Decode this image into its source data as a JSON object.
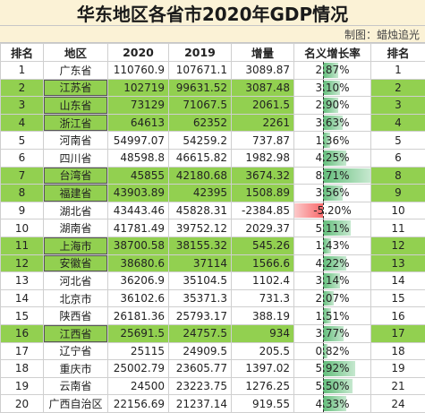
{
  "title": "华东地区各省市2020年GDP情况",
  "credit": "制图：蜡烛追光",
  "headers": [
    "排名",
    "地区",
    "2020",
    "2019",
    "增量",
    "名义增长率",
    "排名"
  ],
  "rows": [
    {
      "rank": "1",
      "region": "广东省",
      "v2020": "110760.9",
      "v2019": "107671.1",
      "inc": "3089.87",
      "rate": "2.87%",
      "rank2": "1",
      "pct": 2.87,
      "hl": false
    },
    {
      "rank": "2",
      "region": "江苏省",
      "v2020": "102719",
      "v2019": "99631.52",
      "inc": "3087.48",
      "rate": "3.10%",
      "rank2": "2",
      "pct": 3.1,
      "hl": true
    },
    {
      "rank": "3",
      "region": "山东省",
      "v2020": "73129",
      "v2019": "71067.5",
      "inc": "2061.5",
      "rate": "2.90%",
      "rank2": "3",
      "pct": 2.9,
      "hl": true
    },
    {
      "rank": "4",
      "region": "浙江省",
      "v2020": "64613",
      "v2019": "62352",
      "inc": "2261",
      "rate": "3.63%",
      "rank2": "4",
      "pct": 3.63,
      "hl": true
    },
    {
      "rank": "5",
      "region": "河南省",
      "v2020": "54997.07",
      "v2019": "54259.2",
      "inc": "737.87",
      "rate": "1.36%",
      "rank2": "5",
      "pct": 1.36,
      "hl": false
    },
    {
      "rank": "6",
      "region": "四川省",
      "v2020": "48598.8",
      "v2019": "46615.82",
      "inc": "1982.98",
      "rate": "4.25%",
      "rank2": "6",
      "pct": 4.25,
      "hl": false
    },
    {
      "rank": "7",
      "region": "台湾省",
      "v2020": "45855",
      "v2019": "42180.68",
      "inc": "3674.32",
      "rate": "8.71%",
      "rank2": "8",
      "pct": 8.71,
      "hl": true
    },
    {
      "rank": "8",
      "region": "福建省",
      "v2020": "43903.89",
      "v2019": "42395",
      "inc": "1508.89",
      "rate": "3.56%",
      "rank2": "9",
      "pct": 3.56,
      "hl": true
    },
    {
      "rank": "9",
      "region": "湖北省",
      "v2020": "43443.46",
      "v2019": "45828.31",
      "inc": "-2384.85",
      "rate": "-5.20%",
      "rank2": "10",
      "pct": -5.2,
      "hl": false
    },
    {
      "rank": "10",
      "region": "湖南省",
      "v2020": "41781.49",
      "v2019": "39752.12",
      "inc": "2029.37",
      "rate": "5.11%",
      "rank2": "11",
      "pct": 5.11,
      "hl": false
    },
    {
      "rank": "11",
      "region": "上海市",
      "v2020": "38700.58",
      "v2019": "38155.32",
      "inc": "545.26",
      "rate": "1.43%",
      "rank2": "12",
      "pct": 1.43,
      "hl": true
    },
    {
      "rank": "12",
      "region": "安徽省",
      "v2020": "38680.6",
      "v2019": "37114",
      "inc": "1566.6",
      "rate": "4.22%",
      "rank2": "13",
      "pct": 4.22,
      "hl": true
    },
    {
      "rank": "13",
      "region": "河北省",
      "v2020": "36206.9",
      "v2019": "35104.5",
      "inc": "1102.4",
      "rate": "3.14%",
      "rank2": "14",
      "pct": 3.14,
      "hl": false
    },
    {
      "rank": "14",
      "region": "北京市",
      "v2020": "36102.6",
      "v2019": "35371.3",
      "inc": "731.3",
      "rate": "2.07%",
      "rank2": "15",
      "pct": 2.07,
      "hl": false
    },
    {
      "rank": "15",
      "region": "陕西省",
      "v2020": "26181.36",
      "v2019": "25793.17",
      "inc": "388.19",
      "rate": "1.51%",
      "rank2": "16",
      "pct": 1.51,
      "hl": false
    },
    {
      "rank": "16",
      "region": "江西省",
      "v2020": "25691.5",
      "v2019": "24757.5",
      "inc": "934",
      "rate": "3.77%",
      "rank2": "17",
      "pct": 3.77,
      "hl": true
    },
    {
      "rank": "17",
      "region": "辽宁省",
      "v2020": "25115",
      "v2019": "24909.5",
      "inc": "205.5",
      "rate": "0.82%",
      "rank2": "18",
      "pct": 0.82,
      "hl": false
    },
    {
      "rank": "18",
      "region": "重庆市",
      "v2020": "25002.79",
      "v2019": "23605.77",
      "inc": "1397.02",
      "rate": "5.92%",
      "rank2": "19",
      "pct": 5.92,
      "hl": false
    },
    {
      "rank": "19",
      "region": "云南省",
      "v2020": "24500",
      "v2019": "23223.75",
      "inc": "1276.25",
      "rate": "5.50%",
      "rank2": "21",
      "pct": 5.5,
      "hl": false
    },
    {
      "rank": "20",
      "region": "广西自治区",
      "v2020": "22156.69",
      "v2019": "21237.14",
      "inc": "919.55",
      "rate": "4.33%",
      "rank2": "24",
      "pct": 4.33,
      "hl": false
    }
  ],
  "bar_scale": {
    "min": -5.2,
    "max": 8.71
  },
  "colors": {
    "highlight": "#92d050",
    "header_bg": "#fbf2d6",
    "bar_pos": "#63be7b",
    "bar_neg": "#f8696b"
  }
}
